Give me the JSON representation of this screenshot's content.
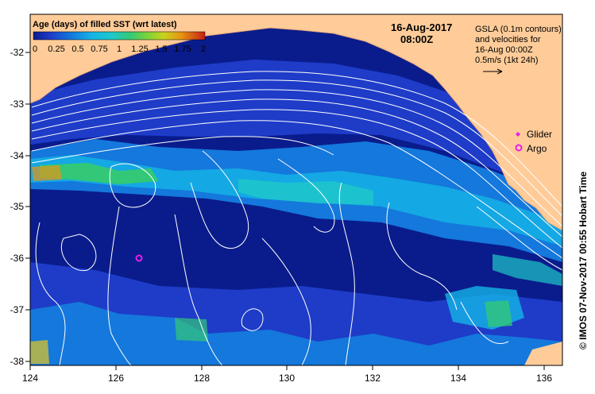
{
  "map": {
    "date_title": "16-Aug-2017",
    "time_title": "08:00Z",
    "legend_title": "Age (days) of filled SST (wrt latest)",
    "colorbar_ticks": [
      "0",
      "0.25",
      "0.5",
      "0.75",
      "1",
      "1.25",
      "1.5",
      "1.75",
      "2"
    ],
    "colorbar_range": [
      0,
      2
    ],
    "colorbar_colors": [
      "#0a1c8c",
      "#1e3cc8",
      "#1478dc",
      "#14b4e6",
      "#1ec8c8",
      "#32c878",
      "#78d23c",
      "#e6c81e",
      "#e67814",
      "#c81e14"
    ],
    "gsla_note": [
      "GSLA (0.1m contours)",
      "and velocities for",
      "16-Aug 00:00Z",
      "0.5m/s (1kt 24h)"
    ],
    "legend_glider": "Glider",
    "legend_argo": "Argo",
    "glider_color": "#e61ee6",
    "argo_color": "#e61ee6",
    "land_color": "#ffcc99",
    "ocean_base_color": "#0a1c8c",
    "credit": "© IMOS 07-Nov-2017 00:55 Hobart Time",
    "x_ticks": [
      "124",
      "126",
      "128",
      "130",
      "132",
      "134",
      "136"
    ],
    "y_ticks": [
      "-32",
      "-33",
      "-34",
      "-35",
      "-36",
      "-37",
      "-38"
    ],
    "lon_range": [
      124,
      136.6
    ],
    "lat_range": [
      -38.1,
      -31.3
    ],
    "argo_float": {
      "lon": 126.6,
      "lat": -36.0
    }
  }
}
